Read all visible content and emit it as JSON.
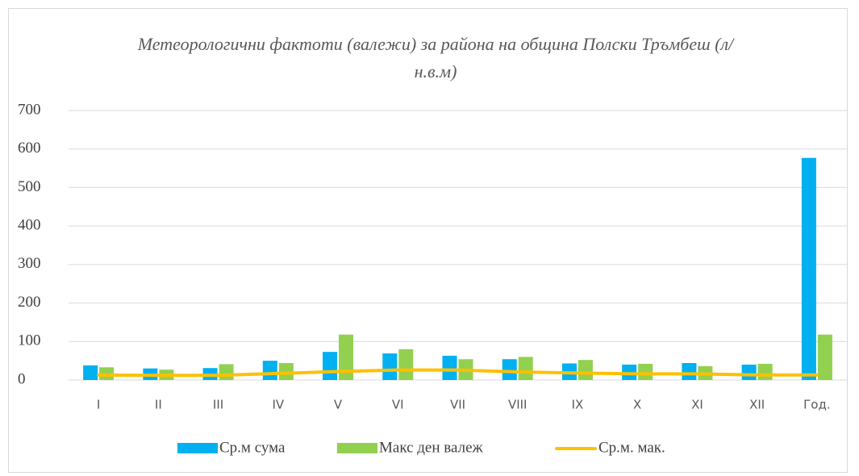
{
  "chart_data": {
    "type": "bar_line",
    "title": "Метеорологични фактоти (валежи) за района на община Полски Тръмбеш (л/н.в.м)",
    "categories": [
      "I",
      "II",
      "III",
      "IV",
      "V",
      "VI",
      "VII",
      "VIII",
      "IX",
      "X",
      "XI",
      "XII",
      "Год."
    ],
    "series": [
      {
        "name": "Ср.м сума",
        "type": "bar",
        "color": "#00b0f0",
        "values": [
          38,
          30,
          31,
          50,
          73,
          69,
          63,
          54,
          43,
          40,
          44,
          40,
          577
        ]
      },
      {
        "name": "Макс ден валеж",
        "type": "bar",
        "color": "#92d050",
        "values": [
          33,
          27,
          41,
          44,
          118,
          80,
          54,
          60,
          52,
          42,
          36,
          42,
          118
        ]
      },
      {
        "name": "Ср.м. мак.",
        "type": "line",
        "color": "#ffc000",
        "values": [
          13,
          12,
          12,
          17,
          22,
          26,
          26,
          21,
          18,
          16,
          16,
          13,
          13
        ]
      }
    ],
    "ylim": [
      0,
      700
    ],
    "yticks": [
      0,
      100,
      200,
      300,
      400,
      500,
      600,
      700
    ],
    "grid": true,
    "legend": "bottom"
  }
}
